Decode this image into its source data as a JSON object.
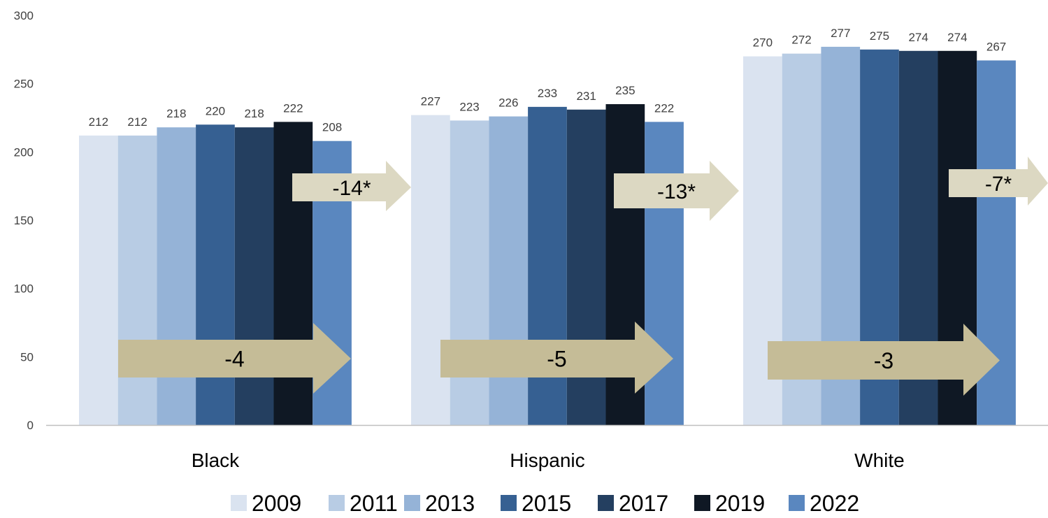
{
  "colors": {
    "2009": "#dae3f0",
    "2011": "#b8cce4",
    "2013": "#95b3d7",
    "2015": "#366092",
    "2017": "#243f60",
    "2019": "#0f1824",
    "2022": "#5a87bf",
    "arrow_fill": "#c5bc97",
    "arrow_fill_light": "#dcd8c2",
    "axis": "#bfbfbf",
    "text": "#404040"
  },
  "chart_data": {
    "type": "bar",
    "title": "",
    "xlabel": "",
    "ylabel": "",
    "ylim": [
      0,
      300
    ],
    "yticks": [
      "0",
      "50",
      "100",
      "150",
      "200",
      "250",
      "300"
    ],
    "grid": false,
    "legend_position": "bottom",
    "categories": [
      "Black",
      "Hispanic",
      "White"
    ],
    "series": [
      {
        "name": "2009",
        "values": [
          212,
          227,
          270
        ],
        "labels": [
          "212",
          "227",
          "270"
        ]
      },
      {
        "name": "2011",
        "values": [
          212,
          223,
          272
        ],
        "labels": [
          "212",
          "223",
          "272"
        ]
      },
      {
        "name": "2013",
        "values": [
          218,
          226,
          277
        ],
        "labels": [
          "218",
          "226",
          "277"
        ]
      },
      {
        "name": "2015",
        "values": [
          220,
          233,
          275
        ],
        "labels": [
          "220",
          "233",
          "275"
        ]
      },
      {
        "name": "2017",
        "values": [
          218,
          231,
          274
        ],
        "labels": [
          "218",
          "231",
          "274"
        ]
      },
      {
        "name": "2019",
        "values": [
          222,
          235,
          274
        ],
        "labels": [
          "222",
          "235",
          "274"
        ]
      },
      {
        "name": "2022",
        "values": [
          208,
          222,
          267
        ],
        "labels": [
          "208",
          "222",
          "267"
        ]
      }
    ],
    "annotations": {
      "short_term_change": [
        "-14*",
        "-13*",
        "-7*"
      ],
      "long_term_change": [
        "-4",
        "-5",
        "-3"
      ]
    }
  }
}
